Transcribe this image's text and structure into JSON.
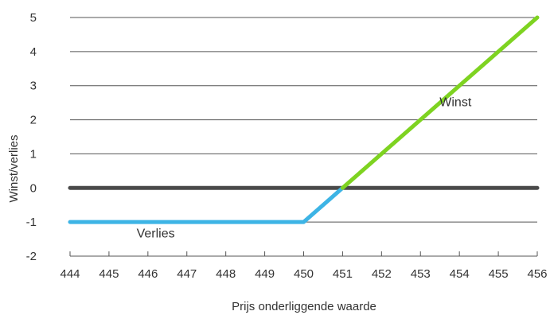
{
  "chart_data": {
    "type": "line",
    "title": "",
    "xlabel": "Prijs onderliggende waarde",
    "ylabel": "Winst/verlies",
    "x_ticks": [
      444,
      445,
      446,
      447,
      448,
      449,
      450,
      451,
      452,
      453,
      454,
      455,
      456
    ],
    "y_ticks": [
      -2,
      -1,
      0,
      1,
      2,
      3,
      4,
      5
    ],
    "xlim": [
      444,
      456
    ],
    "ylim": [
      -2,
      5
    ],
    "grid": "horizontal",
    "series": [
      {
        "name": "",
        "color": "#4a4a4a",
        "points": [
          [
            444,
            0
          ],
          [
            456,
            0
          ]
        ]
      },
      {
        "name": "",
        "color": "#3db4e5",
        "points": [
          [
            444,
            -1
          ],
          [
            450,
            -1
          ],
          [
            451,
            0
          ]
        ]
      },
      {
        "name": "",
        "color": "#7ed321",
        "points": [
          [
            451,
            0
          ],
          [
            456,
            5
          ]
        ]
      }
    ],
    "annotations": [
      {
        "text": "Winst",
        "x": 453.9,
        "y": 2.4
      },
      {
        "text": "Verlies",
        "x": 446.2,
        "y": -1.45
      }
    ]
  }
}
